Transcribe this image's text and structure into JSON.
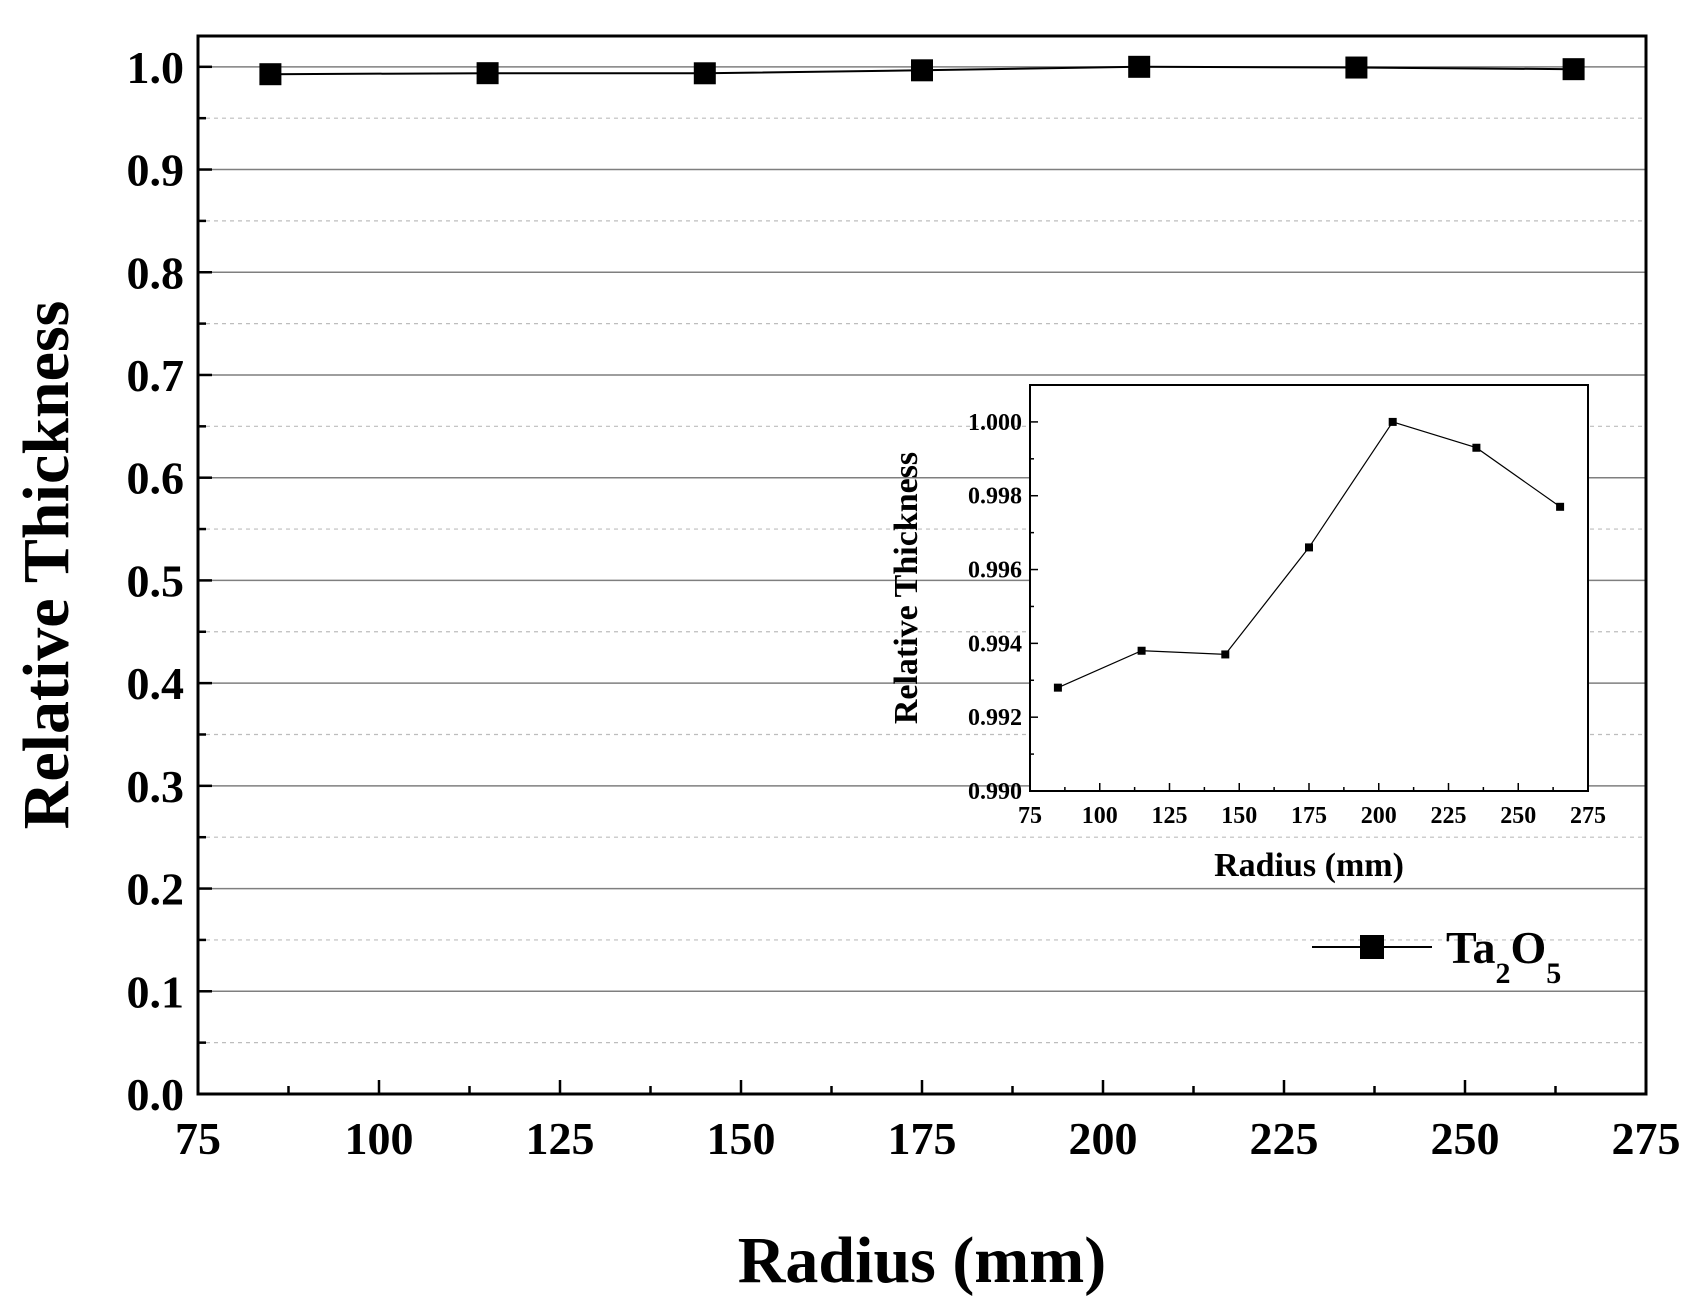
{
  "chart_data": [
    {
      "id": "main",
      "type": "line",
      "title": "",
      "xlabel": "Radius (mm)",
      "ylabel": "Relative Thickness",
      "xlim": [
        75,
        275
      ],
      "ylim": [
        0.0,
        1.03
      ],
      "x_ticks": [
        "75",
        "100",
        "125",
        "150",
        "175",
        "200",
        "225",
        "250",
        "275"
      ],
      "y_ticks": [
        "0.0",
        "0.1",
        "0.2",
        "0.3",
        "0.4",
        "0.5",
        "0.6",
        "0.7",
        "0.8",
        "0.9",
        "1.0"
      ],
      "grid": true,
      "legend": {
        "position": "bottom-right",
        "base": "Ta",
        "sub1": "2",
        "mid": "O",
        "sub2": "5"
      },
      "series": [
        {
          "name": "Ta2O5",
          "marker": "square",
          "color": "#000000",
          "x": [
            85,
            115,
            145,
            175,
            205,
            235,
            265
          ],
          "y": [
            0.9928,
            0.9938,
            0.9937,
            0.9966,
            1.0,
            0.9993,
            0.9977
          ]
        }
      ]
    },
    {
      "id": "inset",
      "type": "line",
      "title": "",
      "xlabel": "Radius (mm)",
      "ylabel": "Relative Thickness",
      "xlim": [
        75,
        275
      ],
      "ylim": [
        0.99,
        1.001
      ],
      "x_ticks": [
        "75",
        "100",
        "125",
        "150",
        "175",
        "200",
        "225",
        "250",
        "275"
      ],
      "y_ticks": [
        "0.990",
        "0.992",
        "0.994",
        "0.996",
        "0.998",
        "1.000"
      ],
      "grid": false,
      "series": [
        {
          "name": "Ta2O5",
          "marker": "square",
          "color": "#000000",
          "x": [
            85,
            115,
            145,
            175,
            205,
            235,
            265
          ],
          "y": [
            0.9928,
            0.9938,
            0.9937,
            0.9966,
            1.0,
            0.9993,
            0.9977
          ]
        }
      ]
    }
  ]
}
